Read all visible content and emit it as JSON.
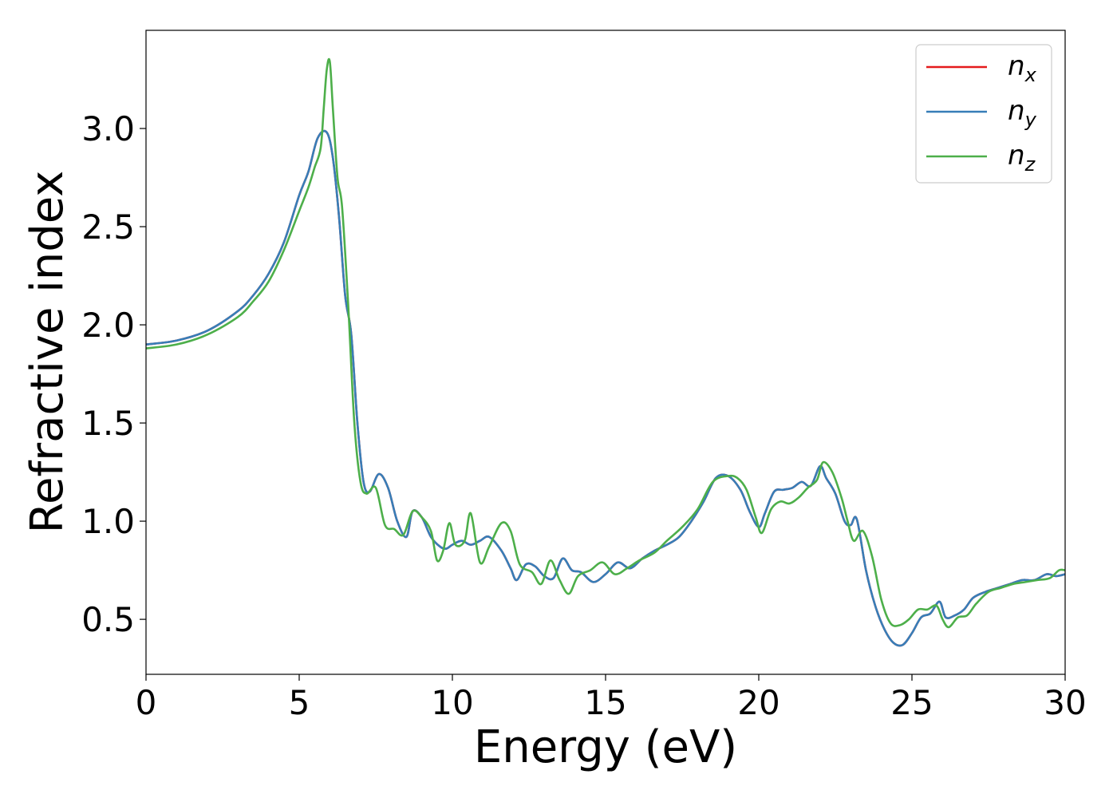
{
  "chart_data": {
    "type": "line",
    "title": "",
    "xlabel": "Energy (eV)",
    "ylabel": "Refractive index",
    "xlim": [
      0,
      30
    ],
    "ylim": [
      0.22,
      3.5
    ],
    "xticks": [
      0,
      5,
      10,
      15,
      20,
      25,
      30
    ],
    "xtick_labels": [
      "0",
      "5",
      "10",
      "15",
      "20",
      "25",
      "30"
    ],
    "yticks": [
      0.5,
      1.0,
      1.5,
      2.0,
      2.5,
      3.0
    ],
    "ytick_labels": [
      "0.5",
      "1.0",
      "1.5",
      "2.0",
      "2.5",
      "3.0"
    ],
    "grid": false,
    "legend_position": "top-right",
    "series": [
      {
        "name": "n_x",
        "label_base": "n",
        "label_sub": "x",
        "color": "#e41a1c",
        "x": [
          0,
          1,
          2,
          3,
          3.5,
          4,
          4.5,
          5,
          5.3,
          5.6,
          5.9,
          6.1,
          6.3,
          6.5,
          6.7,
          6.9,
          7.1,
          7.3,
          7.6,
          7.9,
          8.2,
          8.5,
          8.7,
          9.0,
          9.3,
          9.6,
          9.8,
          10.0,
          10.3,
          10.6,
          10.9,
          11.2,
          11.6,
          11.9,
          12.1,
          12.4,
          12.7,
          13.0,
          13.3,
          13.6,
          13.9,
          14.2,
          14.6,
          15.0,
          15.4,
          15.8,
          16.2,
          16.6,
          17.0,
          17.4,
          17.8,
          18.2,
          18.6,
          19.0,
          19.4,
          19.7,
          20.0,
          20.2,
          20.5,
          20.8,
          21.1,
          21.4,
          21.7,
          22.0,
          22.2,
          22.5,
          22.8,
          23.0,
          23.2,
          23.5,
          23.8,
          24.1,
          24.4,
          24.7,
          25.0,
          25.3,
          25.6,
          25.9,
          26.1,
          26.4,
          26.7,
          27.0,
          27.4,
          27.8,
          28.2,
          28.6,
          29.0,
          29.4,
          29.7,
          30.0
        ],
        "y": [
          1.9,
          1.92,
          1.97,
          2.07,
          2.15,
          2.26,
          2.42,
          2.66,
          2.78,
          2.95,
          2.98,
          2.85,
          2.55,
          2.15,
          1.95,
          1.5,
          1.2,
          1.15,
          1.24,
          1.17,
          1.0,
          0.92,
          1.05,
          1.02,
          0.92,
          0.87,
          0.86,
          0.88,
          0.9,
          0.88,
          0.9,
          0.92,
          0.85,
          0.76,
          0.7,
          0.78,
          0.77,
          0.72,
          0.71,
          0.81,
          0.75,
          0.74,
          0.69,
          0.73,
          0.79,
          0.76,
          0.81,
          0.85,
          0.88,
          0.92,
          1.0,
          1.1,
          1.22,
          1.23,
          1.16,
          1.05,
          0.97,
          1.04,
          1.15,
          1.16,
          1.17,
          1.2,
          1.18,
          1.28,
          1.22,
          1.14,
          1.0,
          0.98,
          1.01,
          0.75,
          0.57,
          0.45,
          0.38,
          0.37,
          0.43,
          0.51,
          0.53,
          0.59,
          0.51,
          0.52,
          0.55,
          0.61,
          0.64,
          0.66,
          0.68,
          0.7,
          0.7,
          0.73,
          0.72,
          0.73
        ]
      },
      {
        "name": "n_y",
        "label_base": "n",
        "label_sub": "y",
        "color": "#377eb8",
        "x": [
          0,
          1,
          2,
          3,
          3.5,
          4,
          4.5,
          5,
          5.3,
          5.6,
          5.9,
          6.1,
          6.3,
          6.5,
          6.7,
          6.9,
          7.1,
          7.3,
          7.6,
          7.9,
          8.2,
          8.5,
          8.7,
          9.0,
          9.3,
          9.6,
          9.8,
          10.0,
          10.3,
          10.6,
          10.9,
          11.2,
          11.6,
          11.9,
          12.1,
          12.4,
          12.7,
          13.0,
          13.3,
          13.6,
          13.9,
          14.2,
          14.6,
          15.0,
          15.4,
          15.8,
          16.2,
          16.6,
          17.0,
          17.4,
          17.8,
          18.2,
          18.6,
          19.0,
          19.4,
          19.7,
          20.0,
          20.2,
          20.5,
          20.8,
          21.1,
          21.4,
          21.7,
          22.0,
          22.2,
          22.5,
          22.8,
          23.0,
          23.2,
          23.5,
          23.8,
          24.1,
          24.4,
          24.7,
          25.0,
          25.3,
          25.6,
          25.9,
          26.1,
          26.4,
          26.7,
          27.0,
          27.4,
          27.8,
          28.2,
          28.6,
          29.0,
          29.4,
          29.7,
          30.0
        ],
        "y": [
          1.9,
          1.92,
          1.97,
          2.07,
          2.15,
          2.26,
          2.42,
          2.66,
          2.78,
          2.95,
          2.98,
          2.85,
          2.55,
          2.15,
          1.95,
          1.5,
          1.2,
          1.15,
          1.24,
          1.17,
          1.0,
          0.92,
          1.05,
          1.02,
          0.92,
          0.87,
          0.86,
          0.88,
          0.9,
          0.88,
          0.9,
          0.92,
          0.85,
          0.76,
          0.7,
          0.78,
          0.77,
          0.72,
          0.71,
          0.81,
          0.75,
          0.74,
          0.69,
          0.73,
          0.79,
          0.76,
          0.81,
          0.85,
          0.88,
          0.92,
          1.0,
          1.1,
          1.22,
          1.23,
          1.16,
          1.05,
          0.97,
          1.04,
          1.15,
          1.16,
          1.17,
          1.2,
          1.18,
          1.28,
          1.22,
          1.14,
          1.0,
          0.98,
          1.01,
          0.75,
          0.57,
          0.45,
          0.38,
          0.37,
          0.43,
          0.51,
          0.53,
          0.59,
          0.51,
          0.52,
          0.55,
          0.61,
          0.64,
          0.66,
          0.68,
          0.7,
          0.7,
          0.73,
          0.72,
          0.73
        ]
      },
      {
        "name": "n_z",
        "label_base": "n",
        "label_sub": "z",
        "color": "#4daf4a",
        "x": [
          0,
          1,
          2,
          3,
          3.5,
          4,
          4.5,
          5,
          5.3,
          5.5,
          5.7,
          5.8,
          5.9,
          6.0,
          6.1,
          6.25,
          6.4,
          6.6,
          6.8,
          7.0,
          7.2,
          7.5,
          7.8,
          8.1,
          8.4,
          8.7,
          9.0,
          9.3,
          9.5,
          9.7,
          9.9,
          10.1,
          10.4,
          10.6,
          10.9,
          11.2,
          11.6,
          11.9,
          12.2,
          12.6,
          12.9,
          13.2,
          13.5,
          13.8,
          14.1,
          14.5,
          14.9,
          15.3,
          15.7,
          16.1,
          16.6,
          17.0,
          17.5,
          18.0,
          18.5,
          19.0,
          19.3,
          19.6,
          19.9,
          20.1,
          20.4,
          20.7,
          21.0,
          21.3,
          21.6,
          21.9,
          22.1,
          22.4,
          22.7,
          22.9,
          23.1,
          23.4,
          23.7,
          24.0,
          24.3,
          24.6,
          24.9,
          25.2,
          25.5,
          25.8,
          26.0,
          26.2,
          26.5,
          26.8,
          27.1,
          27.5,
          27.9,
          28.3,
          28.7,
          29.1,
          29.5,
          29.8,
          30.0
        ],
        "y": [
          1.88,
          1.9,
          1.95,
          2.04,
          2.12,
          2.22,
          2.38,
          2.58,
          2.7,
          2.8,
          2.9,
          3.1,
          3.3,
          3.34,
          3.1,
          2.75,
          2.6,
          2.1,
          1.5,
          1.2,
          1.14,
          1.17,
          0.98,
          0.96,
          0.93,
          1.05,
          1.02,
          0.95,
          0.8,
          0.85,
          0.99,
          0.88,
          0.9,
          1.04,
          0.79,
          0.87,
          0.99,
          0.95,
          0.78,
          0.74,
          0.68,
          0.8,
          0.7,
          0.63,
          0.72,
          0.75,
          0.79,
          0.73,
          0.76,
          0.8,
          0.84,
          0.9,
          0.97,
          1.06,
          1.2,
          1.23,
          1.22,
          1.16,
          1.02,
          0.94,
          1.06,
          1.1,
          1.09,
          1.12,
          1.17,
          1.21,
          1.3,
          1.25,
          1.12,
          1.0,
          0.9,
          0.95,
          0.82,
          0.6,
          0.48,
          0.47,
          0.5,
          0.55,
          0.55,
          0.57,
          0.5,
          0.46,
          0.51,
          0.52,
          0.58,
          0.64,
          0.66,
          0.68,
          0.69,
          0.7,
          0.71,
          0.75,
          0.75
        ]
      }
    ]
  }
}
